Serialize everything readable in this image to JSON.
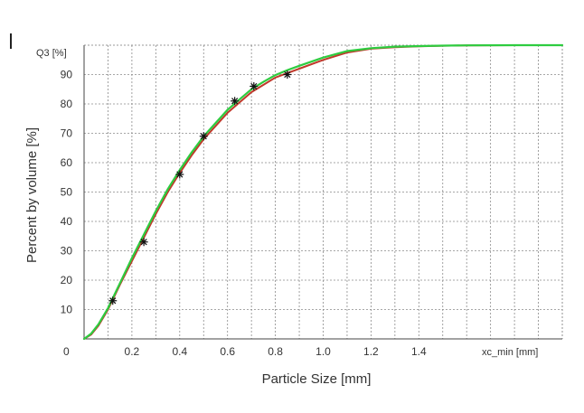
{
  "chart_data": {
    "type": "line",
    "title": "",
    "xlabel": "Particle Size [mm]",
    "ylabel": "Percent by volume [%]",
    "y_axis_title": "Q3 [%]",
    "x_axis_end_label": "xc_min [mm]",
    "origin_label": "0",
    "xlim": [
      0,
      2.0
    ],
    "ylim": [
      0,
      100
    ],
    "x_tick_values": [
      0.2,
      0.4,
      0.6,
      0.8,
      1.0,
      1.2,
      1.4
    ],
    "x_tick_labels": [
      "0.2",
      "0.4",
      "0.6",
      "0.8",
      "1.0",
      "1.2",
      "1.4"
    ],
    "y_tick_values": [
      10,
      20,
      30,
      40,
      50,
      60,
      70,
      80,
      90
    ],
    "y_tick_labels": [
      "10",
      "20",
      "30",
      "40",
      "50",
      "60",
      "70",
      "80",
      "90"
    ],
    "grid": true,
    "legend": "none",
    "series": [
      {
        "style": "markers",
        "marker": "asterisk",
        "color": "#111111",
        "x": [
          0.12,
          0.25,
          0.4,
          0.5,
          0.63,
          0.71,
          0.85
        ],
        "y": [
          13,
          33,
          56,
          69,
          81,
          86,
          90
        ]
      },
      {
        "style": "line",
        "color": "#c0392b",
        "x": [
          0,
          0.03,
          0.06,
          0.1,
          0.15,
          0.2,
          0.25,
          0.3,
          0.35,
          0.4,
          0.45,
          0.5,
          0.55,
          0.6,
          0.65,
          0.7,
          0.75,
          0.8,
          0.85,
          0.9,
          1.0,
          1.1,
          1.2,
          1.3,
          1.4,
          1.5,
          1.6,
          1.8,
          2.0
        ],
        "y": [
          0,
          1.5,
          4.5,
          10,
          18.5,
          26.5,
          34.5,
          42.5,
          50,
          56.5,
          62.5,
          68,
          72.5,
          77,
          80.5,
          84,
          86.5,
          89,
          90.5,
          92,
          95,
          97.5,
          98.8,
          99.3,
          99.6,
          99.8,
          99.9,
          100,
          100
        ]
      },
      {
        "style": "line",
        "color": "#2ecc40",
        "x": [
          0,
          0.03,
          0.06,
          0.1,
          0.15,
          0.2,
          0.25,
          0.3,
          0.35,
          0.4,
          0.45,
          0.5,
          0.55,
          0.6,
          0.65,
          0.7,
          0.75,
          0.8,
          0.85,
          0.9,
          1.0,
          1.1,
          1.2,
          1.3,
          1.4,
          1.5,
          1.6,
          1.8,
          2.0
        ],
        "y": [
          0,
          1.8,
          5,
          10.5,
          19,
          27.5,
          35.5,
          43.5,
          51,
          57.5,
          63.5,
          69,
          73.5,
          78,
          81.5,
          85,
          87.5,
          89.8,
          91.5,
          93,
          95.8,
          98,
          99,
          99.5,
          99.7,
          99.85,
          99.95,
          100,
          100
        ]
      }
    ]
  }
}
